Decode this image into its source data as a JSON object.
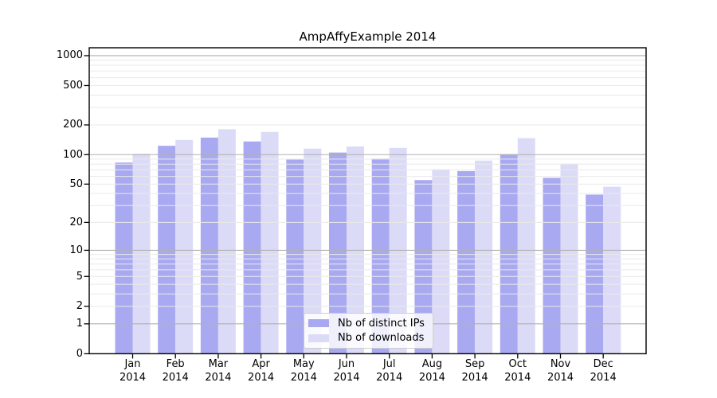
{
  "chart_data": {
    "type": "bar",
    "title": "AmpAffyExample 2014",
    "categories": [
      "Jan",
      "Feb",
      "Mar",
      "Apr",
      "May",
      "Jun",
      "Jul",
      "Aug",
      "Sep",
      "Oct",
      "Nov",
      "Dec"
    ],
    "year_label": "2014",
    "series": [
      {
        "name": "Nb of distinct IPs",
        "color": "#a9a9f1",
        "values": [
          83,
          123,
          149,
          136,
          89,
          105,
          91,
          55,
          68,
          101,
          58,
          39
        ]
      },
      {
        "name": "Nb of downloads",
        "color": "#dbdbf7",
        "values": [
          102,
          141,
          181,
          170,
          115,
          121,
          117,
          71,
          87,
          147,
          81,
          47
        ]
      }
    ],
    "y_axis": {
      "scale": "log1p",
      "tick_labels": [
        "1000",
        "500",
        "200",
        "100",
        "50",
        "20",
        "10",
        "5",
        "2",
        "1",
        "0"
      ],
      "tick_values": [
        1000,
        500,
        200,
        100,
        50,
        20,
        10,
        5,
        2,
        1,
        0
      ],
      "range_max": 1200
    },
    "grid": {
      "major_values": [
        1,
        10,
        100,
        1000
      ],
      "minor_subs": [
        2,
        3,
        4,
        5,
        6,
        7,
        8,
        9
      ],
      "major_color": "#b0b0b0",
      "minor_color": "#e9e9e9"
    },
    "legend": {
      "position": "inside-bottom-center",
      "entries": [
        "Nb of distinct IPs",
        "Nb of downloads"
      ]
    },
    "axis_color": "#000000"
  }
}
